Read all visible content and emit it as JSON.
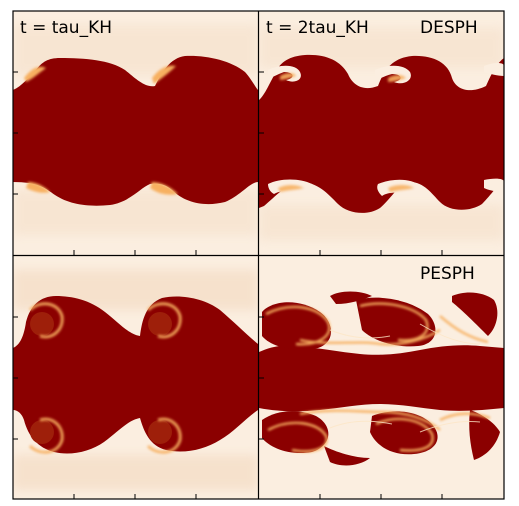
{
  "figure": {
    "panels": [
      {
        "id": "desph-t1",
        "time_label": "t = tau_KH",
        "method_label": ""
      },
      {
        "id": "desph-t2",
        "time_label": "t = 2tau_KH",
        "method_label": "DESPH"
      },
      {
        "id": "pesph-t1",
        "time_label": "",
        "method_label": ""
      },
      {
        "id": "pesph-t2",
        "time_label": "",
        "method_label": "PESPH"
      }
    ]
  },
  "colors": {
    "dense": "#8b0000",
    "ambient": "#fbeee0",
    "highlight": "#f7b060",
    "frame": "#000000"
  }
}
